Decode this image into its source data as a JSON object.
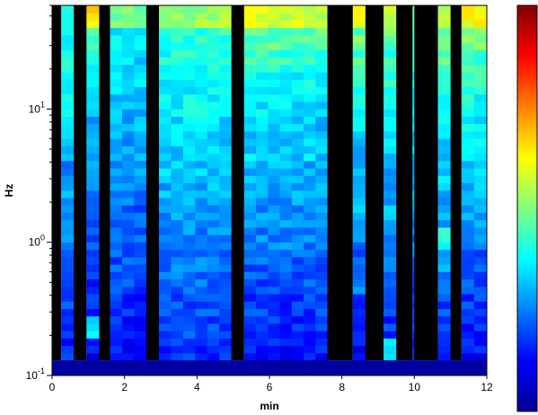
{
  "chart_data": {
    "type": "heatmap",
    "title": "",
    "xlabel": "min",
    "ylabel": "Hz",
    "xlim": [
      0,
      12
    ],
    "ylim": [
      0.1,
      60
    ],
    "y_scale": "log",
    "x_ticks": [
      0,
      2,
      4,
      6,
      8,
      10,
      12
    ],
    "y_ticks": [
      {
        "value": 0.1,
        "base": "10",
        "exp": "-1"
      },
      {
        "value": 1,
        "base": "10",
        "exp": "0"
      },
      {
        "value": 10,
        "base": "10",
        "exp": "1"
      }
    ],
    "colorbar": {
      "position": "right",
      "colormap": "jet",
      "tick_labels": false,
      "colors": [
        "#00008f",
        "#0000ff",
        "#0080ff",
        "#00ffff",
        "#80ff80",
        "#ffff00",
        "#ff8000",
        "#ff0000",
        "#800000"
      ]
    },
    "no_data_color": "#000000",
    "no_data_intervals": [
      [
        0,
        0.25
      ],
      [
        0.6,
        0.95
      ],
      [
        1.3,
        1.6
      ],
      [
        2.6,
        2.95
      ],
      [
        4.95,
        5.3
      ],
      [
        7.6,
        8.3
      ],
      [
        8.65,
        9.15
      ],
      [
        9.5,
        9.95
      ],
      [
        10.0,
        10.65
      ],
      [
        11.0,
        11.3
      ]
    ],
    "floor_band": {
      "y_range": [
        0.1,
        0.13
      ],
      "level": 0.02
    },
    "segments": [
      {
        "x": [
          0.25,
          0.6
        ],
        "levels": [
          0.16,
          0.16,
          0.18,
          0.19,
          0.23,
          0.26,
          0.28,
          0.3,
          0.27,
          0.28,
          0.33,
          0.37,
          0.35,
          0.38,
          0.4,
          0.44
        ]
      },
      {
        "x": [
          0.95,
          1.3
        ],
        "levels": [
          0.12,
          0.33,
          0.16,
          0.17,
          0.18,
          0.22,
          0.23,
          0.26,
          0.28,
          0.32,
          0.3,
          0.33,
          0.38,
          0.4,
          0.45,
          0.65
        ]
      },
      {
        "x": [
          1.6,
          2.6
        ],
        "levels": [
          0.14,
          0.15,
          0.17,
          0.19,
          0.21,
          0.23,
          0.22,
          0.25,
          0.27,
          0.28,
          0.3,
          0.31,
          0.33,
          0.34,
          0.37,
          0.48
        ]
      },
      {
        "x": [
          2.95,
          4.95
        ],
        "levels": [
          0.17,
          0.2,
          0.2,
          0.23,
          0.24,
          0.26,
          0.28,
          0.3,
          0.32,
          0.33,
          0.35,
          0.37,
          0.38,
          0.4,
          0.42,
          0.52
        ]
      },
      {
        "x": [
          5.3,
          7.6
        ],
        "levels": [
          0.14,
          0.17,
          0.18,
          0.2,
          0.22,
          0.25,
          0.27,
          0.28,
          0.3,
          0.33,
          0.32,
          0.35,
          0.38,
          0.42,
          0.46,
          0.58
        ]
      },
      {
        "x": [
          8.3,
          8.65
        ],
        "levels": [
          0.13,
          0.16,
          0.19,
          0.25,
          0.21,
          0.25,
          0.3,
          0.28,
          0.32,
          0.3,
          0.34,
          0.38,
          0.4,
          0.45,
          0.48,
          0.6
        ]
      },
      {
        "x": [
          9.15,
          9.5
        ],
        "levels": [
          0.38,
          0.17,
          0.18,
          0.2,
          0.24,
          0.26,
          0.3,
          0.28,
          0.3,
          0.33,
          0.35,
          0.38,
          0.4,
          0.43,
          0.47,
          0.55
        ]
      },
      {
        "x": [
          9.95,
          10.0
        ],
        "levels": [
          0.14,
          0.16,
          0.18,
          0.2,
          0.22,
          0.24,
          0.26,
          0.28,
          0.3,
          0.32,
          0.34,
          0.36,
          0.38,
          0.4,
          0.42,
          0.5
        ]
      },
      {
        "x": [
          10.65,
          11.0
        ],
        "levels": [
          0.15,
          0.17,
          0.19,
          0.22,
          0.28,
          0.4,
          0.28,
          0.3,
          0.32,
          0.34,
          0.36,
          0.38,
          0.42,
          0.45,
          0.48,
          0.55
        ]
      },
      {
        "x": [
          11.3,
          12.0
        ],
        "levels": [
          0.14,
          0.16,
          0.18,
          0.2,
          0.22,
          0.25,
          0.27,
          0.3,
          0.32,
          0.35,
          0.37,
          0.39,
          0.41,
          0.44,
          0.48,
          0.62
        ]
      }
    ]
  }
}
